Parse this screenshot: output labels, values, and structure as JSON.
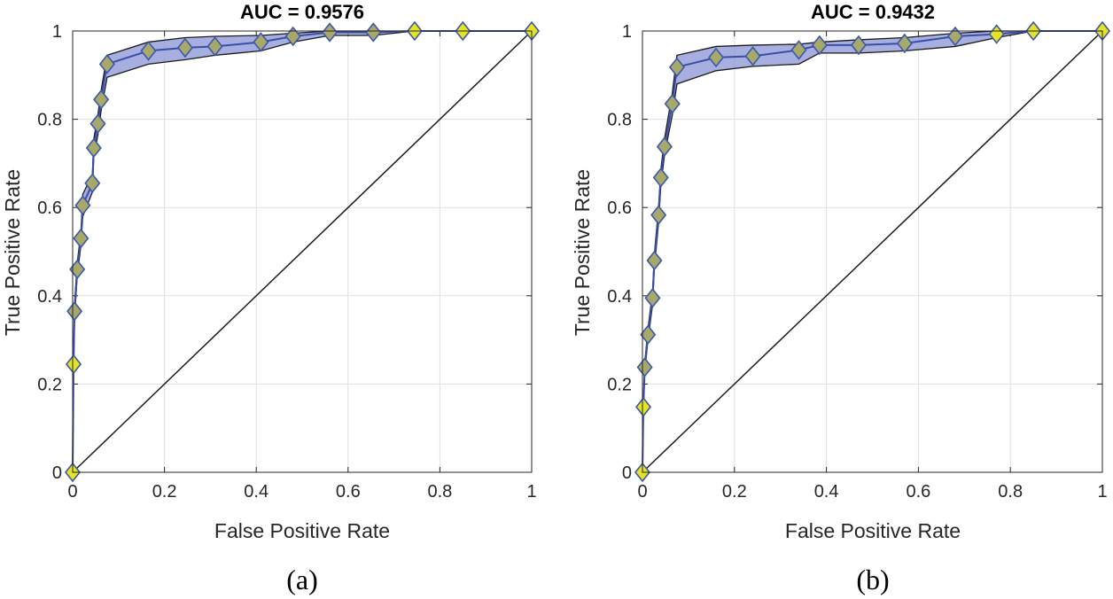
{
  "chart_data": [
    {
      "type": "line",
      "title": "AUC = 0.9576",
      "caption": "(a)",
      "xlabel": "False Positive Rate",
      "ylabel": "True Positive Rate",
      "xlim": [
        0,
        1
      ],
      "ylim": [
        0,
        1
      ],
      "xticks": [
        "0",
        "0.2",
        "0.4",
        "0.6",
        "0.8",
        "1"
      ],
      "yticks": [
        "0",
        "0.2",
        "0.4",
        "0.6",
        "0.8",
        "1"
      ],
      "grid": true,
      "x": [
        0,
        0.002,
        0.004,
        0.01,
        0.018,
        0.022,
        0.043,
        0.046,
        0.055,
        0.062,
        0.075,
        0.165,
        0.245,
        0.31,
        0.41,
        0.48,
        0.56,
        0.655,
        0.745,
        0.85,
        1.0
      ],
      "y": [
        0,
        0.245,
        0.365,
        0.46,
        0.53,
        0.605,
        0.655,
        0.735,
        0.79,
        0.845,
        0.925,
        0.955,
        0.962,
        0.965,
        0.975,
        0.988,
        0.997,
        0.997,
        1.0,
        1.0,
        1.0
      ],
      "lower": [
        0,
        0.235,
        0.35,
        0.445,
        0.515,
        0.58,
        0.635,
        0.715,
        0.765,
        0.82,
        0.895,
        0.925,
        0.935,
        0.945,
        0.955,
        0.975,
        0.99,
        0.99,
        1.0,
        1.0,
        1.0
      ],
      "upper": [
        0,
        0.255,
        0.38,
        0.475,
        0.545,
        0.63,
        0.675,
        0.755,
        0.81,
        0.865,
        0.945,
        0.975,
        0.985,
        0.988,
        0.99,
        0.995,
        1.0,
        1.0,
        1.0,
        1.0,
        1.0
      ],
      "diagonal": true,
      "colors": {
        "line": "#3a4ea8",
        "band": "#8a93d6",
        "marker_fill": "#e6e226",
        "marker_fill_mid": "#a8a86a",
        "marker_edge": "#3a59a8"
      }
    },
    {
      "type": "line",
      "title": "AUC = 0.9432",
      "caption": "(b)",
      "xlabel": "False Positive Rate",
      "ylabel": "True Positive Rate",
      "xlim": [
        0,
        1
      ],
      "ylim": [
        0,
        1
      ],
      "xticks": [
        "0",
        "0.2",
        "0.4",
        "0.6",
        "0.8",
        "1"
      ],
      "yticks": [
        "0",
        "0.2",
        "0.4",
        "0.6",
        "0.8",
        "1"
      ],
      "grid": true,
      "x": [
        0,
        0.002,
        0.005,
        0.012,
        0.022,
        0.026,
        0.035,
        0.04,
        0.048,
        0.065,
        0.075,
        0.16,
        0.24,
        0.34,
        0.385,
        0.47,
        0.57,
        0.68,
        0.77,
        0.85,
        1.0
      ],
      "y": [
        0,
        0.148,
        0.238,
        0.312,
        0.395,
        0.48,
        0.583,
        0.668,
        0.738,
        0.835,
        0.918,
        0.94,
        0.943,
        0.957,
        0.968,
        0.968,
        0.972,
        0.988,
        0.993,
        1.0,
        1.0
      ],
      "lower": [
        0,
        0.14,
        0.228,
        0.3,
        0.38,
        0.465,
        0.565,
        0.65,
        0.72,
        0.81,
        0.88,
        0.91,
        0.92,
        0.925,
        0.95,
        0.95,
        0.955,
        0.965,
        0.985,
        1.0,
        1.0
      ],
      "upper": [
        0,
        0.156,
        0.248,
        0.325,
        0.41,
        0.495,
        0.6,
        0.686,
        0.756,
        0.86,
        0.945,
        0.965,
        0.968,
        0.97,
        0.975,
        0.98,
        0.985,
        0.995,
        1.0,
        1.0,
        1.0
      ],
      "diagonal": true,
      "colors": {
        "line": "#3a4ea8",
        "band": "#8a93d6",
        "marker_fill": "#e6e226",
        "marker_fill_mid": "#a8a86a",
        "marker_edge": "#3a59a8"
      }
    }
  ]
}
